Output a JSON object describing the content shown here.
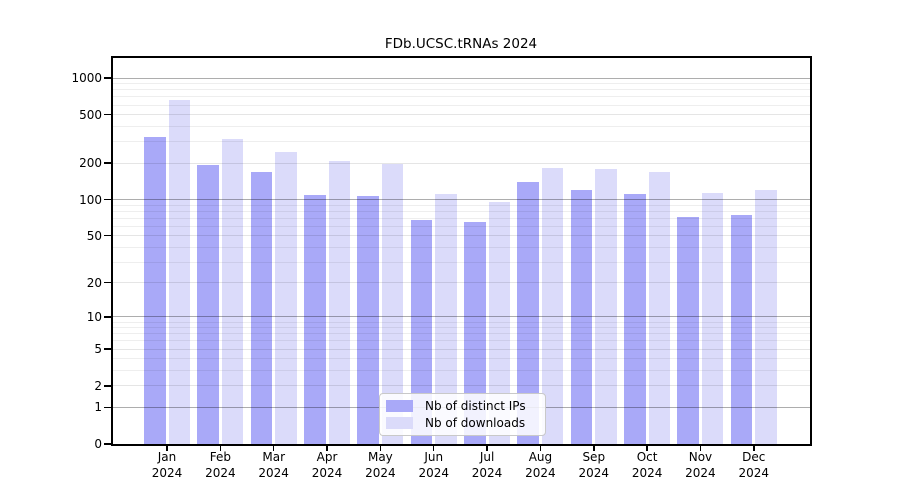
{
  "title": "FDb.UCSC.tRNAs 2024",
  "chart_data": {
    "type": "bar",
    "title": "FDb.UCSC.tRNAs 2024",
    "y_scale": "log1p",
    "ylim": [
      0,
      1460
    ],
    "grid": true,
    "legend_position": "lower center",
    "categories": [
      "Jan",
      "Feb",
      "Mar",
      "Apr",
      "May",
      "Jun",
      "Jul",
      "Aug",
      "Sep",
      "Oct",
      "Nov",
      "Dec"
    ],
    "x_tick_second_line": "2024",
    "y_tick_labels": [
      0,
      1,
      2,
      5,
      10,
      20,
      50,
      100,
      200,
      500,
      1000
    ],
    "y_major_gridlines": [
      1,
      10,
      100,
      1000
    ],
    "series": [
      {
        "name": "Nb of distinct IPs",
        "color": "#a9a9f8",
        "values": [
          330,
          192,
          170,
          109,
          107,
          68,
          65,
          139,
          121,
          112,
          71,
          74
        ]
      },
      {
        "name": "Nb of downloads",
        "color": "#dbdbfa",
        "values": [
          665,
          318,
          248,
          207,
          198,
          111,
          95,
          183,
          180,
          170,
          113,
          120
        ]
      }
    ]
  }
}
